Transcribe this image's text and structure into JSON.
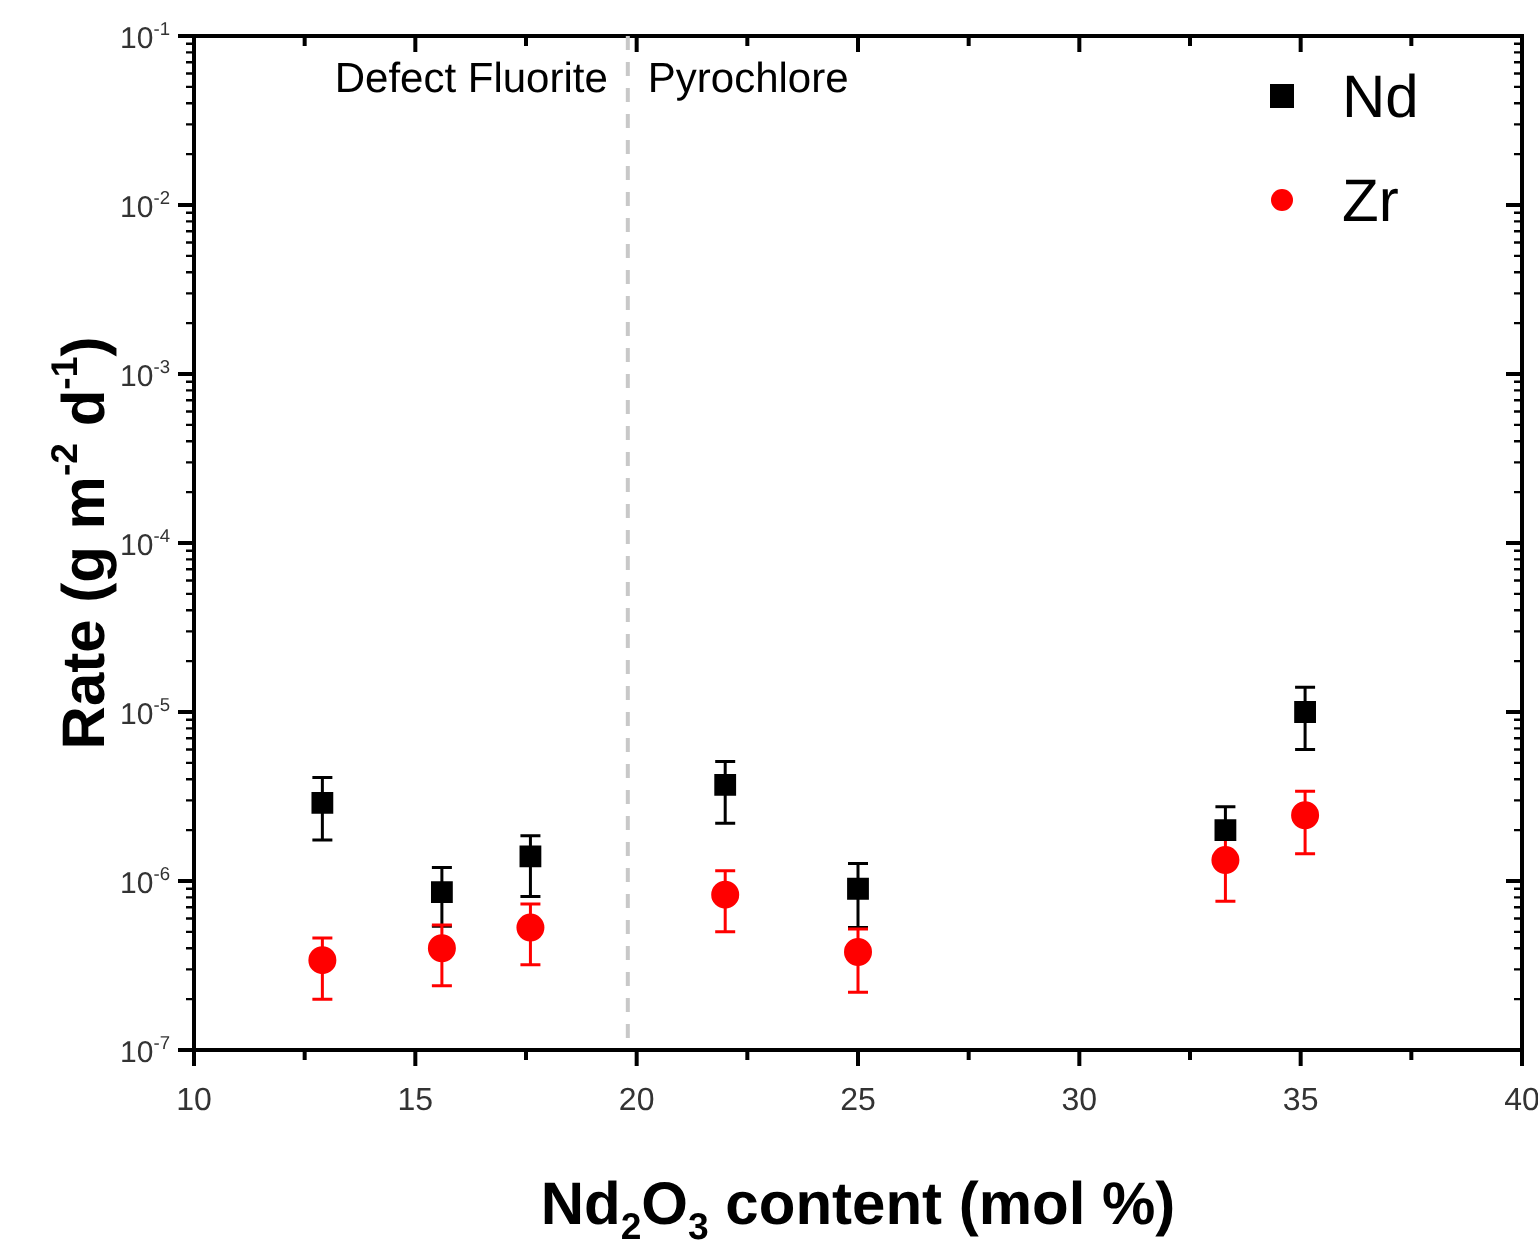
{
  "chart_data": {
    "type": "scatter",
    "xlabel": "Nd$_{2}$O$_{3}$ content (mol %)",
    "ylabel": "Rate (g m$^{-2}$ d$^{-1}$)",
    "x": [
      12.9,
      15.6,
      17.6,
      22.0,
      25.0,
      33.3,
      35.1
    ],
    "series": [
      {
        "name": "Nd",
        "color": "#000000",
        "marker": "square",
        "values": [
          2.9e-06,
          8.6e-07,
          1.4e-06,
          3.7e-06,
          9e-07,
          2e-06,
          1e-05
        ],
        "errors": [
          [
            1.75e-06,
            4.1e-06
          ],
          [
            5.4e-07,
            1.2e-06
          ],
          [
            8.1e-07,
            1.85e-06
          ],
          [
            2.2e-06,
            5.1e-06
          ],
          [
            5.3e-07,
            1.27e-06
          ],
          [
            2e-06,
            2.75e-06
          ],
          [
            6e-06,
            1.4e-05
          ]
        ]
      },
      {
        "name": "Zr",
        "color": "#ff0000",
        "marker": "circle",
        "values": [
          3.4e-07,
          4e-07,
          5.3e-07,
          8.3e-07,
          3.8e-07,
          1.33e-06,
          2.45e-06
        ],
        "errors": [
          [
            2e-07,
            4.6e-07
          ],
          [
            2.4e-07,
            5.5e-07
          ],
          [
            3.2e-07,
            7.3e-07
          ],
          [
            5e-07,
            1.15e-06
          ],
          [
            2.2e-07,
            5.2e-07
          ],
          [
            7.6e-07,
            1.8e-06
          ],
          [
            1.45e-06,
            3.4e-06
          ]
        ]
      }
    ],
    "xlim": [
      10,
      40
    ],
    "xticks": [
      10,
      {
        "value": 12.5,
        "label": null
      },
      15,
      {
        "value": 17.5,
        "label": null
      },
      20,
      {
        "value": 22.5,
        "label": null
      },
      25,
      {
        "value": 27.5,
        "label": null
      },
      30,
      {
        "value": 32.5,
        "label": null
      },
      35,
      {
        "value": 37.5,
        "label": null
      },
      40
    ],
    "ylim": [
      1e-07,
      0.1
    ],
    "log": "y",
    "yticks": [
      {
        "value": 1e-07,
        "label": "10$^{-7}$"
      },
      {
        "value": 2e-07,
        "label": null
      },
      {
        "value": 3e-07,
        "label": null
      },
      {
        "value": 4e-07,
        "label": null
      },
      {
        "value": 5e-07,
        "label": null
      },
      {
        "value": 6e-07,
        "label": null
      },
      {
        "value": 7e-07,
        "label": null
      },
      {
        "value": 8e-07,
        "label": null
      },
      {
        "value": 9e-07,
        "label": null
      },
      {
        "value": 1e-06,
        "label": "10$^{-6}$"
      },
      {
        "value": 2e-06,
        "label": null
      },
      {
        "value": 3e-06,
        "label": null
      },
      {
        "value": 4e-06,
        "label": null
      },
      {
        "value": 5e-06,
        "label": null
      },
      {
        "value": 6e-06,
        "label": null
      },
      {
        "value": 7e-06,
        "label": null
      },
      {
        "value": 8e-06,
        "label": null
      },
      {
        "value": 9e-06,
        "label": null
      },
      {
        "value": 1e-05,
        "label": "10$^{-5}$"
      },
      {
        "value": 2e-05,
        "label": null
      },
      {
        "value": 3e-05,
        "label": null
      },
      {
        "value": 4e-05,
        "label": null
      },
      {
        "value": 5e-05,
        "label": null
      },
      {
        "value": 6e-05,
        "label": null
      },
      {
        "value": 7e-05,
        "label": null
      },
      {
        "value": 8e-05,
        "label": null
      },
      {
        "value": 9e-05,
        "label": null
      },
      {
        "value": 0.0001,
        "label": "10$^{-4}$"
      },
      {
        "value": 0.0002,
        "label": null
      },
      {
        "value": 0.0003,
        "label": null
      },
      {
        "value": 0.0004,
        "label": null
      },
      {
        "value": 0.0005,
        "label": null
      },
      {
        "value": 0.0006,
        "label": null
      },
      {
        "value": 0.0007,
        "label": null
      },
      {
        "value": 0.0008,
        "label": null
      },
      {
        "value": 0.0009,
        "label": null
      },
      {
        "value": 0.001,
        "label": "10$^{-3}$"
      },
      {
        "value": 0.002,
        "label": null
      },
      {
        "value": 0.003,
        "label": null
      },
      {
        "value": 0.004,
        "label": null
      },
      {
        "value": 0.005,
        "label": null
      },
      {
        "value": 0.006,
        "label": null
      },
      {
        "value": 0.007,
        "label": null
      },
      {
        "value": 0.008,
        "label": null
      },
      {
        "value": 0.009,
        "label": null
      },
      {
        "value": 0.01,
        "label": "10$^{-2}$"
      },
      {
        "value": 0.02,
        "label": null
      },
      {
        "value": 0.03,
        "label": null
      },
      {
        "value": 0.04,
        "label": null
      },
      {
        "value": 0.05,
        "label": null
      },
      {
        "value": 0.06,
        "label": null
      },
      {
        "value": 0.07,
        "label": null
      },
      {
        "value": 0.08,
        "label": null
      },
      {
        "value": 0.09,
        "label": null
      },
      {
        "value": 0.1,
        "label": "10$^{-1}$"
      }
    ],
    "ref_lines": [
      {
        "axis": "x",
        "value": 19.8,
        "color": "#c8c8c8",
        "line_style": "dashed"
      }
    ],
    "annotations": [
      "Defect Fluorite",
      "Pyrochlore"
    ],
    "legend": "top right",
    "grid": false
  }
}
